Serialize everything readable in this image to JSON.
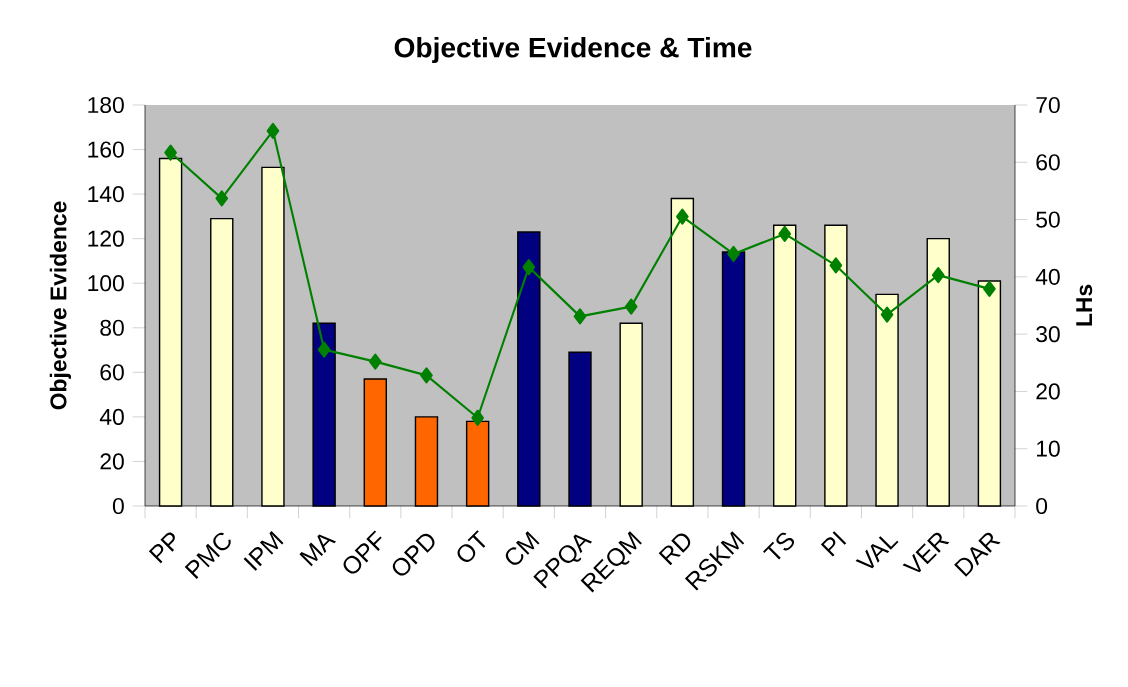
{
  "chart_data": {
    "type": "bar",
    "title": "Objective Evidence & Time",
    "ylabel": "Objective Evidence",
    "y2label": "LHs",
    "categories": [
      "PP",
      "PMC",
      "IPM",
      "MA",
      "OPF",
      "OPD",
      "OT",
      "CM",
      "PPQA",
      "REQM",
      "RD",
      "RSKM",
      "TS",
      "PI",
      "VAL",
      "VER",
      "DAR"
    ],
    "series": [
      {
        "values": [
          156,
          129,
          152,
          82,
          57,
          40,
          38,
          123,
          69,
          82,
          138,
          114,
          126,
          126,
          95,
          120,
          101
        ],
        "colors": [
          "#ffffcc",
          "#ffffcc",
          "#ffffcc",
          "#000080",
          "#ff6600",
          "#ff6600",
          "#ff6600",
          "#000080",
          "#000080",
          "#ffffcc",
          "#ffffcc",
          "#000080",
          "#ffffcc",
          "#ffffcc",
          "#ffffcc",
          "#ffffcc",
          "#ffffcc"
        ]
      },
      {
        "type": "line",
        "axis": "y2",
        "color": "#008000",
        "values": [
          61.7,
          53.7,
          65.5,
          27.3,
          25.2,
          22.8,
          15.4,
          41.7,
          33.1,
          34.8,
          50.5,
          44.0,
          47.5,
          42.0,
          33.4,
          40.3,
          37.9
        ]
      }
    ],
    "marker": "diamond",
    "ylim": [
      0,
      180
    ],
    "yticks": [
      0,
      20,
      40,
      60,
      80,
      100,
      120,
      140,
      160,
      180
    ],
    "y2lim": [
      0,
      70
    ],
    "y2ticks": [
      0,
      10,
      20,
      30,
      40,
      50,
      60,
      70
    ]
  }
}
